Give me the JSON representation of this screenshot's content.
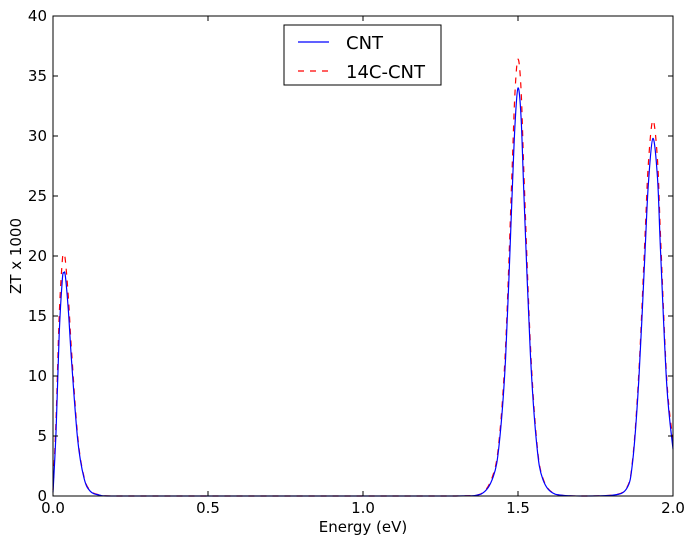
{
  "chart_data": {
    "type": "line",
    "title": "",
    "xlabel": "Energy (eV)",
    "ylabel": "ZT x 1000",
    "xlim": [
      0.0,
      2.0
    ],
    "ylim": [
      0,
      40
    ],
    "xticks": [
      0.0,
      0.5,
      1.0,
      1.5,
      2.0
    ],
    "xtick_labels": [
      "0.0",
      "0.5",
      "1.0",
      "1.5",
      "2.0"
    ],
    "yticks": [
      0,
      5,
      10,
      15,
      20,
      25,
      30,
      35,
      40
    ],
    "ytick_labels": [
      "0",
      "5",
      "10",
      "15",
      "20",
      "25",
      "30",
      "35",
      "40"
    ],
    "grid": false,
    "legend_position": "upper center",
    "series": [
      {
        "name": "CNT",
        "color": "#0000ff",
        "linestyle": "solid",
        "x": [
          0.0,
          0.01,
          0.02,
          0.03,
          0.035,
          0.04,
          0.05,
          0.06,
          0.08,
          0.1,
          0.12,
          0.15,
          0.2,
          0.5,
          1.0,
          1.3,
          1.38,
          1.42,
          1.44,
          1.46,
          1.48,
          1.49,
          1.5,
          1.51,
          1.52,
          1.54,
          1.56,
          1.58,
          1.62,
          1.7,
          1.8,
          1.85,
          1.87,
          1.89,
          1.91,
          1.92,
          1.935,
          1.95,
          1.96,
          1.98,
          2.0
        ],
        "y": [
          0.3,
          5.5,
          13.5,
          18.0,
          18.6,
          18.3,
          15.3,
          11.2,
          4.6,
          1.5,
          0.4,
          0.08,
          0.0,
          0.0,
          0.0,
          0.0,
          0.15,
          1.6,
          4.5,
          11.5,
          24.5,
          30.8,
          34.0,
          31.5,
          24.5,
          11.8,
          4.4,
          1.4,
          0.15,
          0.0,
          0.05,
          0.6,
          2.9,
          9.8,
          20.5,
          25.8,
          29.8,
          26.5,
          20.3,
          9.2,
          3.9
        ]
      },
      {
        "name": "14C-CNT",
        "color": "#ff0000",
        "linestyle": "dashed",
        "x": [
          0.0,
          0.01,
          0.02,
          0.03,
          0.035,
          0.04,
          0.05,
          0.06,
          0.08,
          0.1,
          0.12,
          0.15,
          0.2,
          0.5,
          1.0,
          1.3,
          1.38,
          1.42,
          1.44,
          1.46,
          1.48,
          1.49,
          1.5,
          1.51,
          1.52,
          1.54,
          1.56,
          1.58,
          1.62,
          1.7,
          1.8,
          1.85,
          1.87,
          1.89,
          1.91,
          1.92,
          1.935,
          1.95,
          1.96,
          1.98,
          2.0
        ],
        "y": [
          0.5,
          6.5,
          15.0,
          19.6,
          20.1,
          19.6,
          16.4,
          12.0,
          4.9,
          1.6,
          0.45,
          0.09,
          0.0,
          0.0,
          0.0,
          0.0,
          0.17,
          1.8,
          4.9,
          12.5,
          26.5,
          33.5,
          36.4,
          33.8,
          26.2,
          12.6,
          4.7,
          1.5,
          0.16,
          0.0,
          0.06,
          0.65,
          3.1,
          10.4,
          21.8,
          27.5,
          31.3,
          28.0,
          21.5,
          9.7,
          4.6
        ]
      }
    ]
  }
}
